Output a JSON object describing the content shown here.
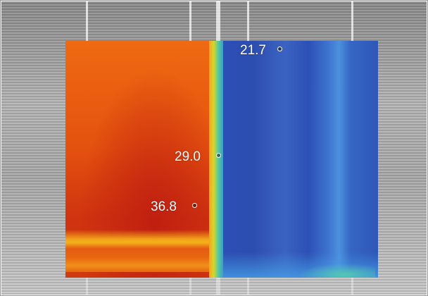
{
  "readings": [
    {
      "value": "21.7"
    },
    {
      "value": "29.0"
    },
    {
      "value": "36.8"
    }
  ]
}
